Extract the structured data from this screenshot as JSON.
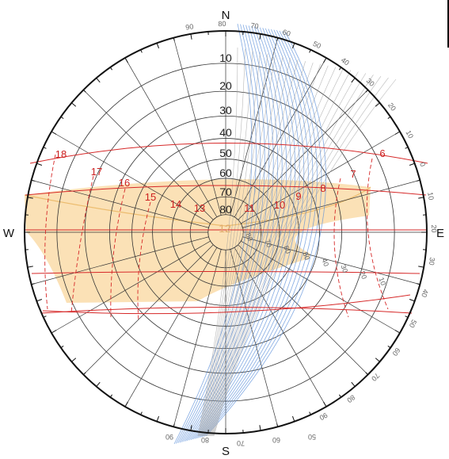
{
  "cardinals": {
    "north": "N",
    "south": "S",
    "east": "E",
    "west": "W"
  },
  "altitude_labels": [
    "10",
    "20",
    "30",
    "40",
    "50",
    "60",
    "70",
    "80"
  ],
  "hour_labels_left": [
    "18",
    "17",
    "16",
    "15",
    "14",
    "13"
  ],
  "hour_labels_right": [
    "11",
    "10",
    "9",
    "8",
    "7",
    "6"
  ],
  "center_label": "12",
  "protractor_top_arc": [
    "90",
    "80",
    "70",
    "60",
    "50",
    "40",
    "30",
    "20",
    "10",
    "0",
    "10",
    "20",
    "30",
    "40",
    "50",
    "60",
    "70",
    "80",
    "90"
  ],
  "protractor_axis": [
    "80",
    "70",
    "60",
    "50",
    "40",
    "30",
    "20",
    "10"
  ],
  "protractor_bottom_arc": [
    "90",
    "80",
    "70",
    "60",
    "50"
  ],
  "colors": {
    "grid": "#333333",
    "sun_path": "#d62828",
    "shade_band": "#f7c97a",
    "protractor_blue": "#5b8fd9",
    "protractor_gray": "#9a9a9a",
    "outer_ring": "#111111"
  }
}
